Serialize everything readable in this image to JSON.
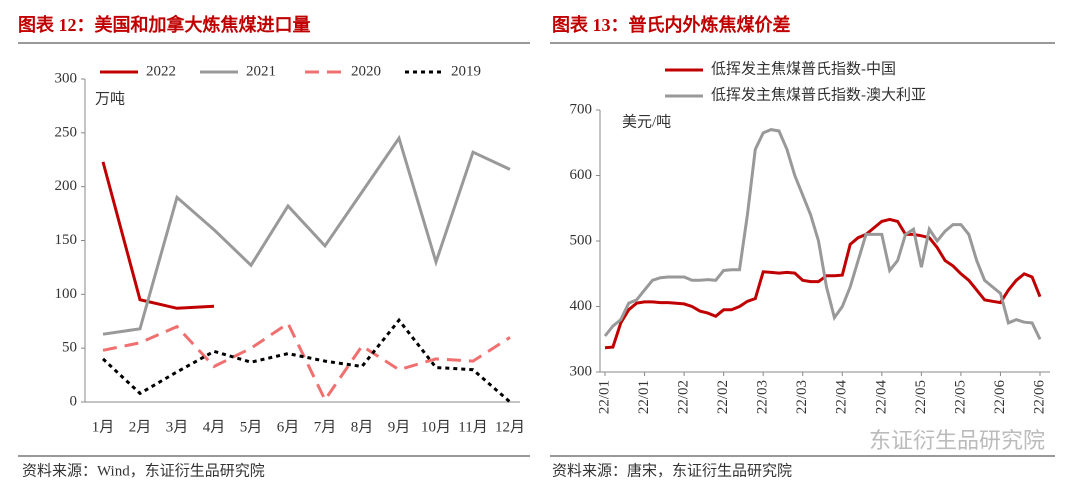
{
  "chart_data": [
    {
      "type": "line",
      "title": "图表 12：美国和加拿大炼焦煤进口量",
      "y_label": "万吨",
      "source": "资料来源：Wind，东证衍生品研究院",
      "categories": [
        "1月",
        "2月",
        "3月",
        "4月",
        "5月",
        "6月",
        "7月",
        "8月",
        "9月",
        "10月",
        "11月",
        "12月"
      ],
      "ylim": [
        0,
        300
      ],
      "yticks": [
        0,
        50,
        100,
        150,
        200,
        250,
        300
      ],
      "legend_layout": "row",
      "x_labels_vertical": false,
      "series": [
        {
          "name": "2022",
          "color": "#c00000",
          "dash": "solid",
          "values": [
            223,
            95,
            87,
            89,
            null,
            null,
            null,
            null,
            null,
            null,
            null,
            null
          ]
        },
        {
          "name": "2021",
          "color": "#999999",
          "dash": "solid",
          "values": [
            63,
            68,
            190,
            160,
            127,
            182,
            145,
            195,
            245,
            130,
            232,
            216
          ]
        },
        {
          "name": "2020",
          "color": "#f07070",
          "dash": "dashed",
          "values": [
            48,
            55,
            70,
            33,
            50,
            73,
            2,
            52,
            30,
            40,
            38,
            60
          ]
        },
        {
          "name": "2019",
          "color": "#000000",
          "dash": "dotted",
          "values": [
            40,
            8,
            28,
            47,
            37,
            45,
            38,
            33,
            76,
            32,
            30,
            0
          ]
        }
      ]
    },
    {
      "type": "line",
      "title": "图表 13：普氏内外炼焦煤价差",
      "y_label": "美元/吨",
      "source": "资料来源：唐宋，东证衍生品研究院",
      "categories": [
        "22/01",
        null,
        null,
        null,
        null,
        "22/01",
        null,
        null,
        null,
        null,
        "22/02",
        null,
        null,
        null,
        null,
        "22/02",
        null,
        null,
        null,
        null,
        "22/03",
        null,
        null,
        null,
        null,
        "22/03",
        null,
        null,
        null,
        null,
        "22/04",
        null,
        null,
        null,
        null,
        "22/04",
        null,
        null,
        null,
        null,
        "22/05",
        null,
        null,
        null,
        null,
        "22/05",
        null,
        null,
        null,
        null,
        "22/06",
        null,
        null,
        null,
        null,
        "22/06"
      ],
      "ylim": [
        300,
        700
      ],
      "yticks": [
        300,
        400,
        500,
        600,
        700
      ],
      "legend_layout": "column",
      "x_labels_vertical": true,
      "series": [
        {
          "name": "低挥发主焦煤普氏指数-中国",
          "color": "#c00000",
          "dash": "solid",
          "values": [
            337,
            338,
            375,
            395,
            405,
            407,
            407,
            406,
            406,
            405,
            404,
            400,
            393,
            390,
            385,
            395,
            395,
            400,
            408,
            412,
            453,
            452,
            451,
            452,
            451,
            440,
            438,
            438,
            447,
            447,
            448,
            495,
            505,
            510,
            520,
            530,
            533,
            530,
            510,
            510,
            508,
            505,
            490,
            470,
            462,
            450,
            440,
            425,
            410,
            408,
            406,
            425,
            440,
            450,
            445,
            415
          ]
        },
        {
          "name": "低挥发主焦煤普氏指数-澳大利亚",
          "color": "#999999",
          "dash": "solid",
          "values": [
            355,
            370,
            380,
            405,
            410,
            425,
            440,
            444,
            445,
            445,
            445,
            440,
            440,
            441,
            440,
            455,
            456,
            456,
            540,
            640,
            665,
            670,
            668,
            640,
            600,
            570,
            540,
            500,
            430,
            383,
            400,
            430,
            470,
            510,
            510,
            510,
            455,
            470,
            510,
            518,
            460,
            518,
            500,
            515,
            525,
            525,
            510,
            470,
            440,
            430,
            420,
            375,
            380,
            376,
            375,
            350
          ]
        }
      ]
    }
  ],
  "watermark": "东证衍生品研究院"
}
